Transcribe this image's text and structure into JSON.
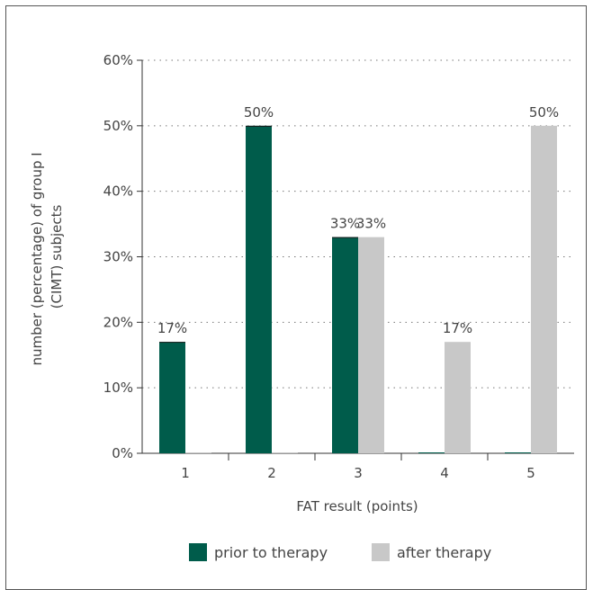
{
  "chart_data": {
    "type": "bar",
    "categories": [
      "1",
      "2",
      "3",
      "4",
      "5"
    ],
    "series": [
      {
        "name": "prior to therapy",
        "color": "#005c4b",
        "values": [
          17,
          50,
          33,
          0,
          0
        ],
        "labels": [
          "17%",
          "50%",
          "33%",
          "",
          ""
        ]
      },
      {
        "name": "after therapy",
        "color": "#c8c8c8",
        "values": [
          0,
          0,
          33,
          17,
          50
        ],
        "labels": [
          "",
          "",
          "33%",
          "17%",
          "50%"
        ]
      }
    ],
    "xlabel": "FAT result (points)",
    "ylabel_lines": [
      "number (percentage) of group I",
      "(CIMT) subjects"
    ],
    "ylim": [
      0,
      60
    ],
    "yticks": [
      0,
      10,
      20,
      30,
      40,
      50,
      60
    ],
    "ytick_labels": [
      "0%",
      "10%",
      "20%",
      "30%",
      "40%",
      "50%",
      "60%"
    ],
    "grid": "dotted horizontal",
    "legend_position": "bottom"
  }
}
